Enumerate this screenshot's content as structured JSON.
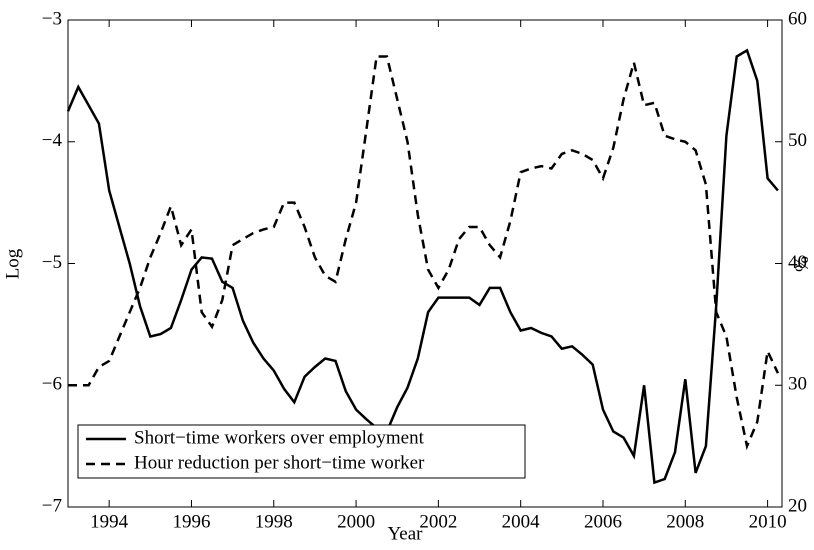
{
  "chart_data": {
    "type": "line",
    "xlabel": "Year",
    "ylabel": "Log",
    "y2label": "%",
    "x": [
      1993,
      1993.25,
      1993.5,
      1993.75,
      1994,
      1994.25,
      1994.5,
      1994.75,
      1995,
      1995.25,
      1995.5,
      1995.75,
      1996,
      1996.25,
      1996.5,
      1996.75,
      1997,
      1997.25,
      1997.5,
      1997.75,
      1998,
      1998.25,
      1998.5,
      1998.75,
      1999,
      1999.25,
      1999.5,
      1999.75,
      2000,
      2000.25,
      2000.5,
      2000.75,
      2001,
      2001.25,
      2001.5,
      2001.75,
      2002,
      2002.25,
      2002.5,
      2002.75,
      2003,
      2003.25,
      2003.5,
      2003.75,
      2004,
      2004.25,
      2004.5,
      2004.75,
      2005,
      2005.25,
      2005.5,
      2005.75,
      2006,
      2006.25,
      2006.5,
      2006.75,
      2007,
      2007.25,
      2007.5,
      2007.75,
      2008,
      2008.25,
      2008.5,
      2008.75,
      2009,
      2009.25,
      2009.5,
      2009.75,
      2010,
      2010.25
    ],
    "series": [
      {
        "name": "Short−time workers over employment",
        "color": "#000000",
        "dash": "solid",
        "axis": "y",
        "values": [
          -3.75,
          -3.55,
          -3.7,
          -3.85,
          -4.4,
          -4.7,
          -5.0,
          -5.35,
          -5.6,
          -5.58,
          -5.53,
          -5.3,
          -5.05,
          -4.95,
          -4.96,
          -5.15,
          -5.2,
          -5.47,
          -5.65,
          -5.78,
          -5.88,
          -6.03,
          -6.14,
          -5.93,
          -5.85,
          -5.78,
          -5.8,
          -6.05,
          -6.2,
          -6.28,
          -6.35,
          -6.38,
          -6.18,
          -6.02,
          -5.78,
          -5.4,
          -5.28,
          -5.28,
          -5.28,
          -5.28,
          -5.34,
          -5.2,
          -5.2,
          -5.4,
          -5.55,
          -5.53,
          -5.57,
          -5.6,
          -5.7,
          -5.68,
          -5.75,
          -5.83,
          -6.2,
          -6.38,
          -6.43,
          -6.58,
          -6.0,
          -6.8,
          -6.77,
          -6.55,
          -5.95,
          -6.72,
          -6.5,
          -5.35,
          -3.95,
          -3.3,
          -3.25,
          -3.5,
          -4.3,
          -4.4
        ]
      },
      {
        "name": "Hour reduction per short−time worker",
        "color": "#000000",
        "dash": "dashed",
        "axis": "y2",
        "values": [
          30,
          30,
          30,
          31.5,
          32,
          34,
          36,
          38,
          40.5,
          42.5,
          44.7,
          41.5,
          42.8,
          36,
          34.8,
          37,
          41.5,
          42,
          42.5,
          42.8,
          43,
          45,
          45,
          43,
          40.5,
          39,
          38.5,
          42,
          45,
          51,
          57,
          57,
          53.5,
          50,
          44,
          39.5,
          38,
          39.5,
          42,
          43,
          43,
          41.5,
          40.5,
          43.5,
          47.5,
          47.8,
          48,
          47.8,
          49,
          49.3,
          49,
          48.5,
          47,
          49.5,
          53.5,
          56.5,
          53,
          53.2,
          50.5,
          50.2,
          50,
          49.3,
          46.5,
          36,
          34,
          29,
          25,
          27,
          32.8,
          31
        ]
      }
    ],
    "xlim": [
      1993,
      2010.35
    ],
    "xticks": [
      1994,
      1996,
      1998,
      2000,
      2002,
      2004,
      2006,
      2008,
      2010
    ],
    "ylim": [
      -7,
      -3
    ],
    "yticks": [
      {
        "value": -7,
        "label": "−7"
      },
      {
        "value": -6,
        "label": "−6"
      },
      {
        "value": -5,
        "label": "−5"
      },
      {
        "value": -4,
        "label": "−4"
      },
      {
        "value": -3,
        "label": "−3"
      }
    ],
    "y2lim": [
      20,
      60
    ],
    "y2ticks": [
      20,
      30,
      40,
      50,
      60
    ],
    "legend": "lower left"
  }
}
